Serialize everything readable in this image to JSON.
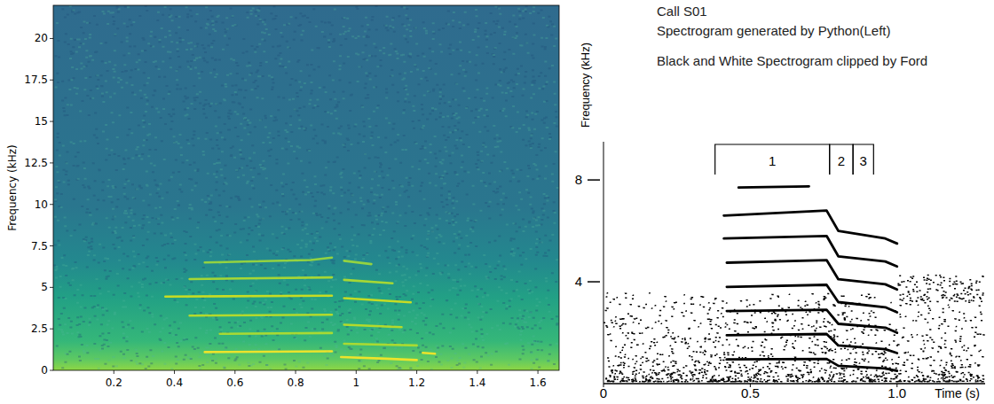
{
  "caption": [
    "Call S01",
    "Spectrogram generated by Python(Left)",
    "Black and White Spectrogram clipped by Ford"
  ],
  "chart_data": [
    {
      "type": "spectrogram",
      "y_label": "Frequency (kHz)",
      "xlim": [
        0,
        1.67
      ],
      "ylim": [
        0,
        22
      ],
      "xticks": [
        0.2,
        0.4,
        0.6,
        0.8,
        1.0,
        1.2,
        1.4,
        1.6
      ],
      "yticks": [
        0,
        2.5,
        5,
        7.5,
        10,
        12.5,
        15,
        17.5,
        20
      ],
      "series": [
        {
          "color": "#fde725",
          "x": [
            0.5,
            0.7,
            0.92,
            0.935,
            0.95,
            1.1,
            1.2,
            1.21,
            1.22,
            1.26
          ],
          "values": [
            1.1,
            1.12,
            1.15,
            null,
            0.8,
            0.7,
            0.62,
            null,
            1.05,
            1.0
          ]
        },
        {
          "color": "#b5de2b",
          "x": [
            0.55,
            0.92,
            0.935,
            0.96,
            1.2
          ],
          "values": [
            2.2,
            2.25,
            null,
            1.6,
            1.5
          ]
        },
        {
          "color": "#c2df23",
          "x": [
            0.45,
            0.92,
            0.935,
            0.96,
            1.15
          ],
          "values": [
            3.3,
            3.35,
            null,
            2.75,
            2.6
          ]
        },
        {
          "color": "#d8e219",
          "x": [
            0.37,
            0.92,
            0.935,
            0.96,
            1.18
          ],
          "values": [
            4.45,
            4.5,
            null,
            4.35,
            4.1
          ]
        },
        {
          "color": "#b5de2b",
          "x": [
            0.45,
            0.92,
            0.935,
            0.96,
            1.12
          ],
          "values": [
            5.5,
            5.6,
            null,
            5.45,
            5.25
          ]
        },
        {
          "color": "#a0da39",
          "x": [
            0.5,
            0.85,
            0.92,
            0.935,
            0.96,
            1.05
          ],
          "values": [
            6.5,
            6.65,
            6.8,
            null,
            6.6,
            6.4
          ]
        }
      ]
    },
    {
      "type": "spectrogram",
      "x_label": "Time (s)",
      "y_label": "Frequency (kHz)",
      "xlim": [
        0,
        1.3
      ],
      "ylim": [
        0,
        9.5
      ],
      "xticks": [
        0,
        0.5,
        {
          "value": 1,
          "label": "1.0"
        }
      ],
      "yticks": [
        4,
        8
      ],
      "segments": [
        {
          "label": "1",
          "start": 0.38,
          "end": 0.77
        },
        {
          "label": "2",
          "start": 0.77,
          "end": 0.85
        },
        {
          "label": "3",
          "start": 0.85,
          "end": 0.92
        }
      ],
      "series": [
        {
          "color": "#000000",
          "x": [
            0.42,
            0.76,
            0.8,
            0.96,
            1.0
          ],
          "values": [
            0.95,
            0.97,
            0.7,
            0.6,
            0.5
          ]
        },
        {
          "color": "#000000",
          "x": [
            0.42,
            0.76,
            0.8,
            0.96,
            1.0
          ],
          "values": [
            1.9,
            1.95,
            1.5,
            1.35,
            1.2
          ]
        },
        {
          "color": "#000000",
          "x": [
            0.42,
            0.76,
            0.8,
            0.96,
            1.0
          ],
          "values": [
            2.85,
            2.9,
            2.35,
            2.2,
            2.0
          ]
        },
        {
          "color": "#000000",
          "x": [
            0.42,
            0.76,
            0.8,
            0.96,
            1.0
          ],
          "values": [
            3.8,
            3.88,
            3.2,
            3.0,
            2.8
          ]
        },
        {
          "color": "#000000",
          "x": [
            0.42,
            0.76,
            0.8,
            0.96,
            1.0
          ],
          "values": [
            4.75,
            4.85,
            4.1,
            3.9,
            3.7
          ]
        },
        {
          "color": "#000000",
          "x": [
            0.41,
            0.76,
            0.8,
            0.96,
            1.0
          ],
          "values": [
            5.7,
            5.8,
            5.0,
            4.8,
            4.6
          ]
        },
        {
          "color": "#000000",
          "x": [
            0.41,
            0.76,
            0.8,
            0.96,
            1.0
          ],
          "values": [
            6.6,
            6.8,
            6.0,
            5.7,
            5.5
          ]
        },
        {
          "color": "#000000",
          "x": [
            0.46,
            0.7
          ],
          "values": [
            7.7,
            7.75
          ]
        }
      ]
    }
  ]
}
